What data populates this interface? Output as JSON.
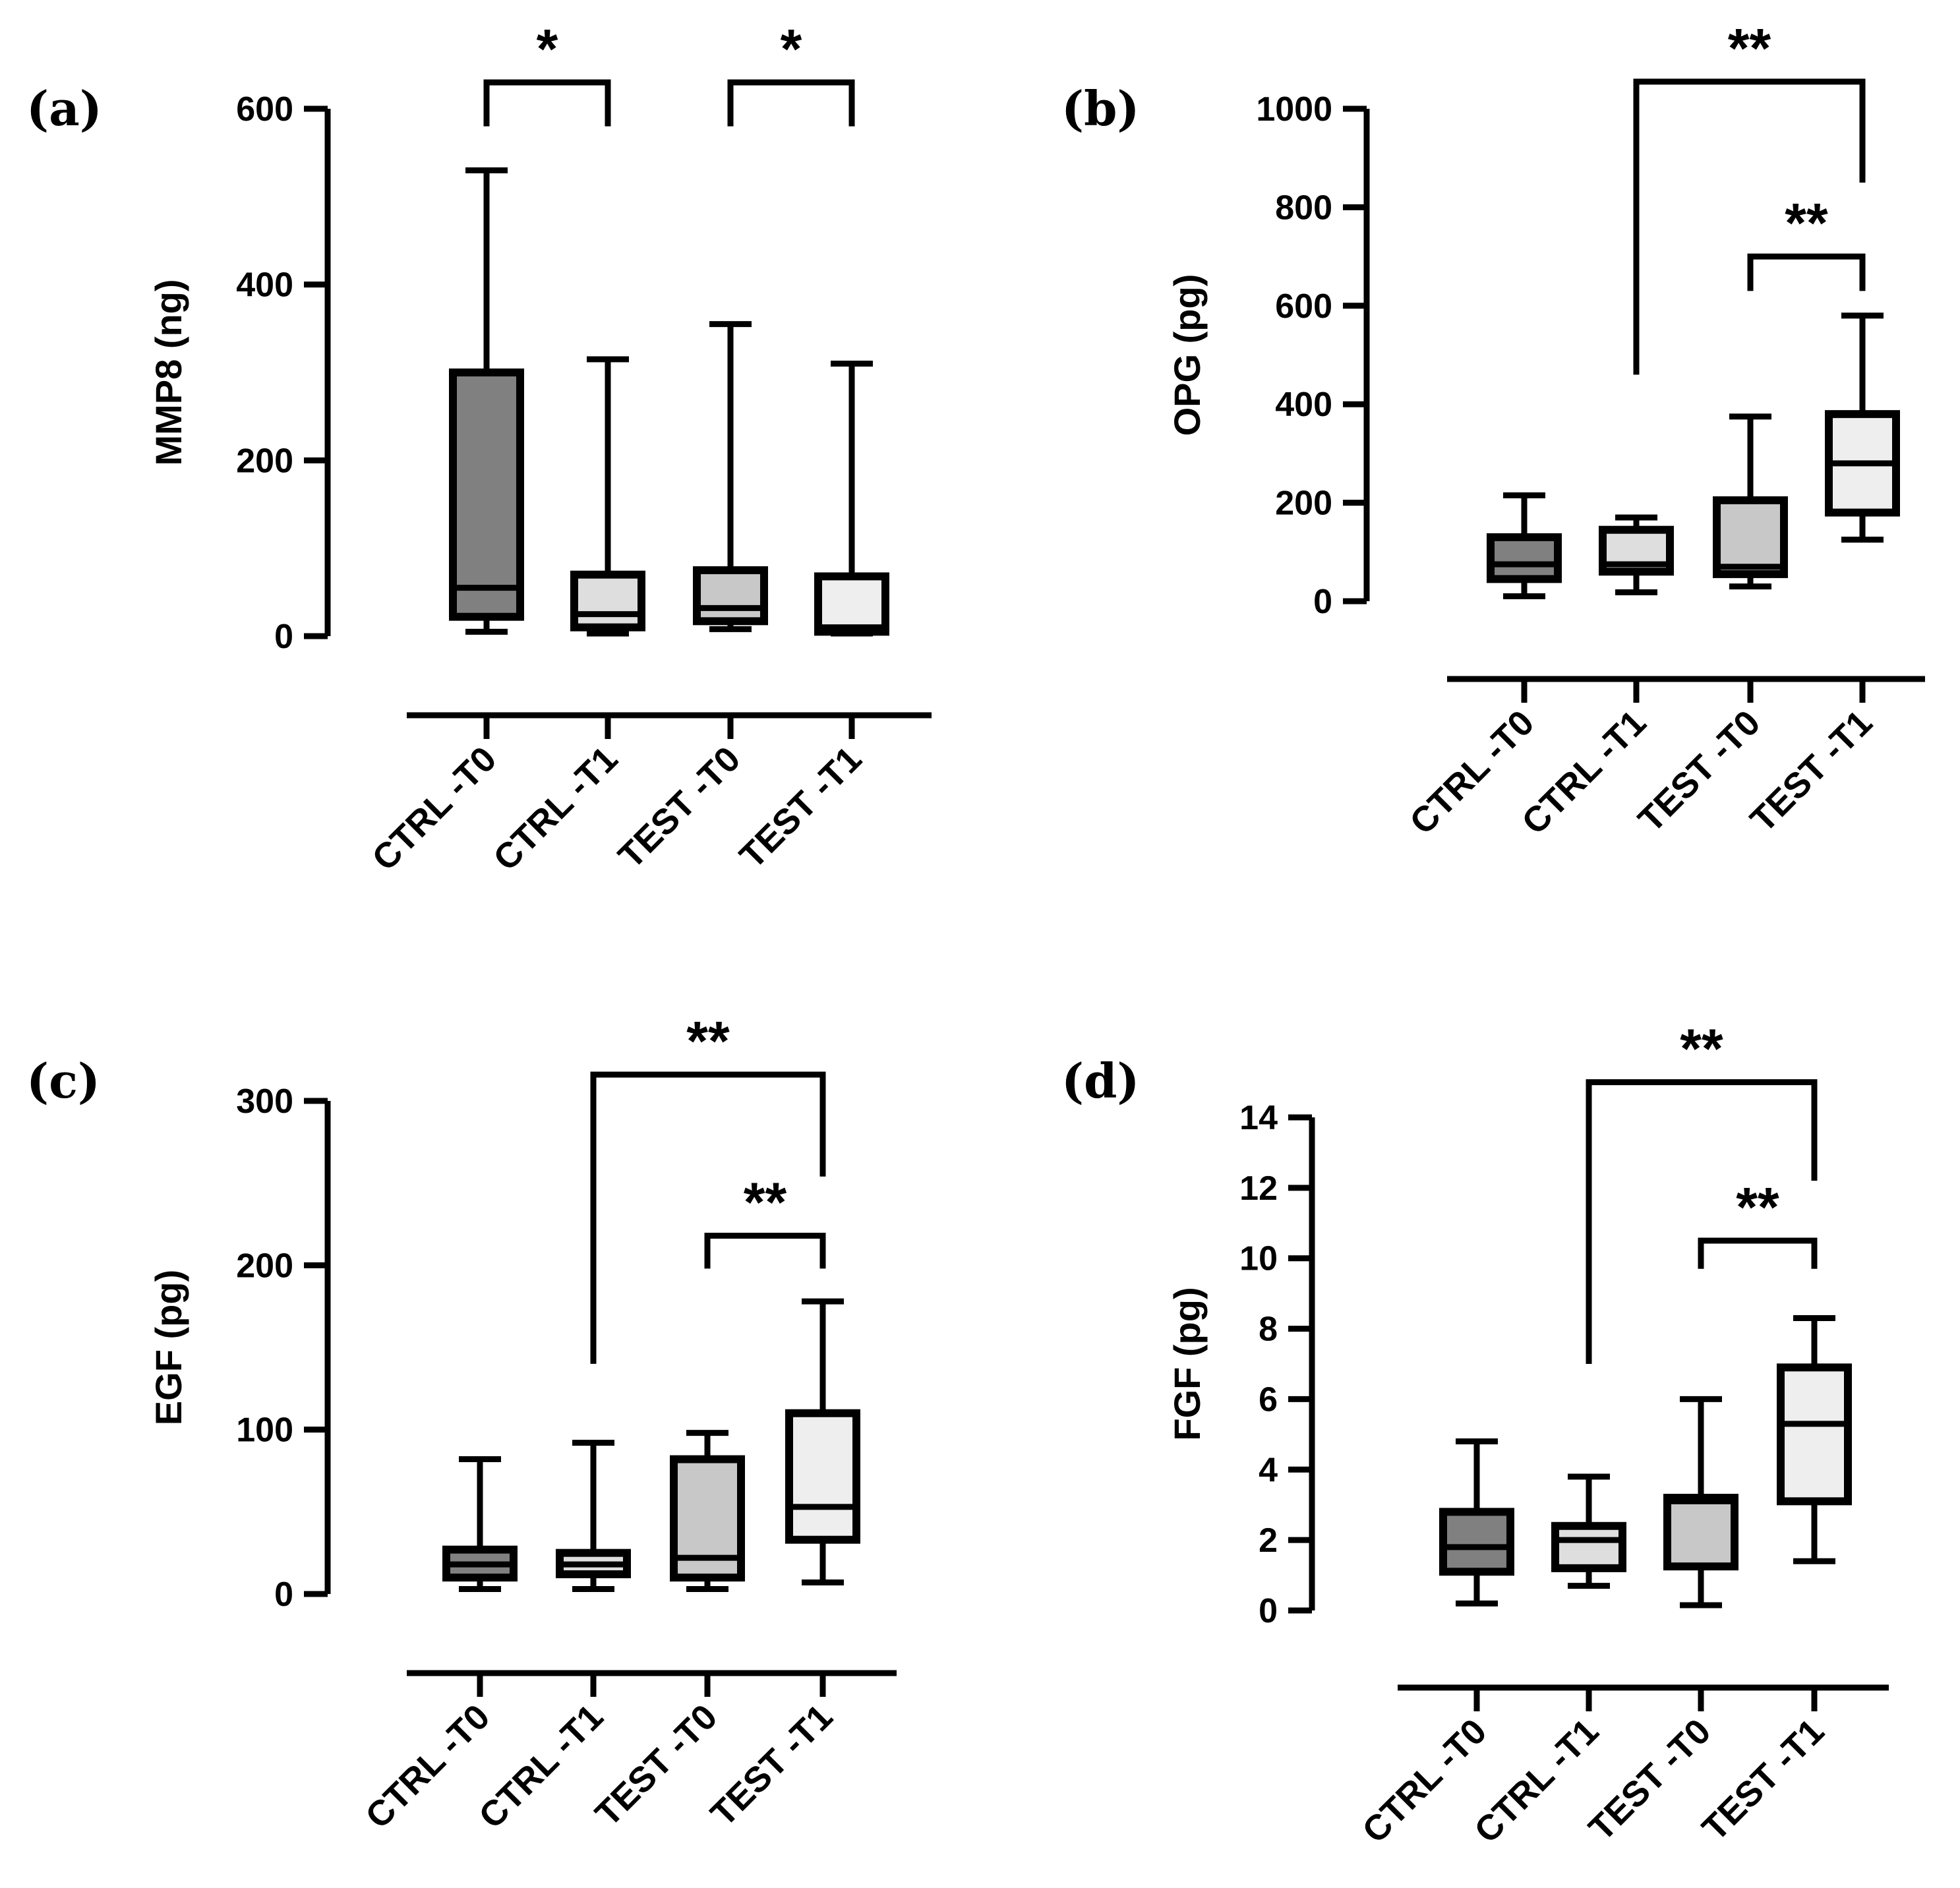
{
  "chart_data": [
    {
      "type": "box",
      "panel_label": "(a)",
      "ylabel": "MMP8 (ng)",
      "ylim": [
        0,
        600
      ],
      "yticks": [
        0,
        200,
        400,
        600
      ],
      "categories": [
        "CTRL -T0",
        "CTRL -T1",
        "TEST -T0",
        "TEST -T1"
      ],
      "colors": [
        "#808080",
        "#dedede",
        "#c8c8c8",
        "#eeeeee"
      ],
      "boxes": [
        {
          "min": 5,
          "q1": 22,
          "median": 55,
          "q3": 300,
          "max": 530
        },
        {
          "min": 3,
          "q1": 10,
          "median": 25,
          "q3": 70,
          "max": 315
        },
        {
          "min": 8,
          "q1": 17,
          "median": 32,
          "q3": 75,
          "max": 355
        },
        {
          "min": 3,
          "q1": 5,
          "median": 10,
          "q3": 68,
          "max": 310
        }
      ],
      "significance": [
        {
          "from": 0,
          "to": 1,
          "label": "*",
          "level": 630,
          "drop_left": 580,
          "drop_right": 580
        },
        {
          "from": 2,
          "to": 3,
          "label": "*",
          "level": 630,
          "drop_left": 580,
          "drop_right": 580
        }
      ]
    },
    {
      "type": "box",
      "panel_label": "(b)",
      "ylabel": "OPG (pg)",
      "ylim": [
        0,
        1000
      ],
      "yticks": [
        0,
        200,
        400,
        600,
        800,
        1000
      ],
      "categories": [
        "CTRL -T0",
        "CTRL -T1",
        "TEST -T0",
        "TEST -T1"
      ],
      "colors": [
        "#808080",
        "#dedede",
        "#c8c8c8",
        "#eeeeee"
      ],
      "boxes": [
        {
          "min": 10,
          "q1": 45,
          "median": 75,
          "q3": 130,
          "max": 215
        },
        {
          "min": 18,
          "q1": 60,
          "median": 75,
          "q3": 145,
          "max": 170
        },
        {
          "min": 30,
          "q1": 55,
          "median": 70,
          "q3": 205,
          "max": 375
        },
        {
          "min": 125,
          "q1": 180,
          "median": 280,
          "q3": 380,
          "max": 580
        }
      ],
      "significance": [
        {
          "from": 1,
          "to": 3,
          "label": "**",
          "level": 1055,
          "drop_left": 460,
          "drop_right": 850
        },
        {
          "from": 2,
          "to": 3,
          "label": "**",
          "level": 700,
          "drop_left": 630,
          "drop_right": 630
        }
      ]
    },
    {
      "type": "box",
      "panel_label": "(c)",
      "ylabel": "EGF (pg)",
      "ylim": [
        0,
        300
      ],
      "yticks": [
        0,
        100,
        200,
        300
      ],
      "categories": [
        "CTRL -T0",
        "CTRL -T1",
        "TEST -T0",
        "TEST -T1"
      ],
      "colors": [
        "#808080",
        "#dedede",
        "#c8c8c8",
        "#eeeeee"
      ],
      "boxes": [
        {
          "min": 3,
          "q1": 10,
          "median": 18,
          "q3": 27,
          "max": 82
        },
        {
          "min": 3,
          "q1": 12,
          "median": 18,
          "q3": 25,
          "max": 92
        },
        {
          "min": 3,
          "q1": 10,
          "median": 22,
          "q3": 82,
          "max": 98
        },
        {
          "min": 7,
          "q1": 33,
          "median": 53,
          "q3": 110,
          "max": 178
        }
      ],
      "significance": [
        {
          "from": 1,
          "to": 3,
          "label": "**",
          "level": 316,
          "drop_left": 140,
          "drop_right": 254
        },
        {
          "from": 2,
          "to": 3,
          "label": "**",
          "level": 218,
          "drop_left": 198,
          "drop_right": 198
        }
      ]
    },
    {
      "type": "box",
      "panel_label": "(d)",
      "ylabel": "FGF (pg)",
      "ylim": [
        0,
        14
      ],
      "yticks": [
        0,
        2,
        4,
        6,
        8,
        10,
        12,
        14
      ],
      "categories": [
        "CTRL -T0",
        "CTRL -T1",
        "TEST -T0",
        "TEST -T1"
      ],
      "colors": [
        "#808080",
        "#dedede",
        "#c8c8c8",
        "#eeeeee"
      ],
      "boxes": [
        {
          "min": 0.2,
          "q1": 1.1,
          "median": 1.8,
          "q3": 2.8,
          "max": 4.8
        },
        {
          "min": 0.7,
          "q1": 1.2,
          "median": 2.0,
          "q3": 2.4,
          "max": 3.8
        },
        {
          "min": 0.15,
          "q1": 1.25,
          "median": 3.1,
          "q3": 3.2,
          "max": 6.0
        },
        {
          "min": 1.4,
          "q1": 3.1,
          "median": 5.3,
          "q3": 6.9,
          "max": 8.3
        }
      ],
      "significance": [
        {
          "from": 1,
          "to": 3,
          "label": "**",
          "level": 15.0,
          "drop_left": 7.0,
          "drop_right": 12.2
        },
        {
          "from": 2,
          "to": 3,
          "label": "**",
          "level": 10.5,
          "drop_left": 9.7,
          "drop_right": 9.7
        }
      ]
    }
  ]
}
